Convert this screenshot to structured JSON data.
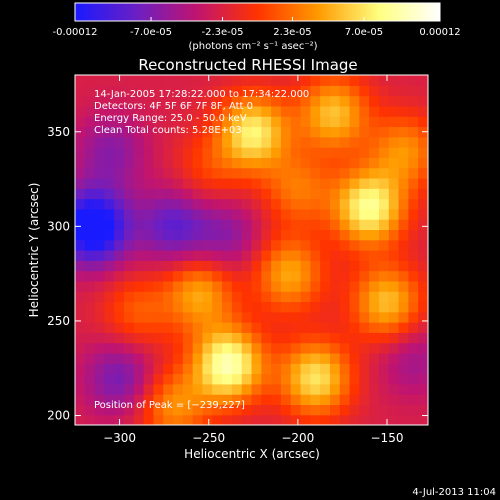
{
  "colorbar": {
    "tick_labels": [
      "-0.00012",
      "-7.0e-05",
      "-2.3e-05",
      "2.3e-05",
      "7.0e-05",
      "0.00012"
    ],
    "tick_values": [
      -0.00012,
      -7e-05,
      -2.3e-05,
      2.3e-05,
      7e-05,
      0.00012
    ],
    "range": [
      -0.00012,
      0.00012
    ],
    "unit_label": "(photons cm⁻² s⁻¹ asec⁻²)",
    "colors": [
      "#1a1aff",
      "#6a1fc4",
      "#c01470",
      "#ff3300",
      "#ff9a00",
      "#ffff80",
      "#ffffff"
    ]
  },
  "chart_data": {
    "type": "heatmap",
    "title": "Reconstructed RHESSI Image",
    "xlabel": "Heliocentric X (arcsec)",
    "ylabel": "Heliocentric Y (arcsec)",
    "xlim": [
      -325,
      -127
    ],
    "ylim": [
      195,
      380
    ],
    "x_ticks": [
      -300,
      -250,
      -200,
      -150
    ],
    "y_ticks": [
      200,
      250,
      300,
      350
    ],
    "x_tick_labels": [
      "−300",
      "−250",
      "−200",
      "−150"
    ],
    "y_tick_labels": [
      "200",
      "250",
      "300",
      "350"
    ],
    "annotations": [
      "14-Jan-2005 17:28:22.000 to 17:34:22.000",
      "Detectors: 4F 5F 6F 7F 8F, Att 0",
      "Energy Range: 25.0 - 50.0 keV",
      "Clean    Total counts: 5.28E+03"
    ],
    "peak_label": "Position of Peak = [−239,227]",
    "peak_position": [
      -239,
      227
    ],
    "sources": [
      {
        "x": -239,
        "y": 227,
        "v": 0.00012
      },
      {
        "x": -225,
        "y": 350,
        "v": 0.0001
      },
      {
        "x": -160,
        "y": 310,
        "v": 0.00011
      },
      {
        "x": -190,
        "y": 220,
        "v": 9.5e-05
      },
      {
        "x": -150,
        "y": 260,
        "v": 8e-05
      },
      {
        "x": -205,
        "y": 275,
        "v": 7e-05
      },
      {
        "x": -255,
        "y": 265,
        "v": 7e-05
      },
      {
        "x": -290,
        "y": 255,
        "v": 4e-05
      },
      {
        "x": -270,
        "y": 205,
        "v": 6e-05
      },
      {
        "x": -180,
        "y": 360,
        "v": 8e-05
      },
      {
        "x": -140,
        "y": 340,
        "v": 6e-05
      },
      {
        "x": -200,
        "y": 320,
        "v": 5e-05
      },
      {
        "x": -250,
        "y": 330,
        "v": 3e-05
      },
      {
        "x": -305,
        "y": 340,
        "v": -4e-05
      },
      {
        "x": -315,
        "y": 300,
        "v": -0.00012
      },
      {
        "x": -270,
        "y": 300,
        "v": -6e-05
      },
      {
        "x": -240,
        "y": 295,
        "v": -4e-05
      },
      {
        "x": -300,
        "y": 220,
        "v": -5e-05
      },
      {
        "x": -135,
        "y": 230,
        "v": -3e-05
      }
    ]
  },
  "timestamp": "4-Jul-2013 11:04"
}
